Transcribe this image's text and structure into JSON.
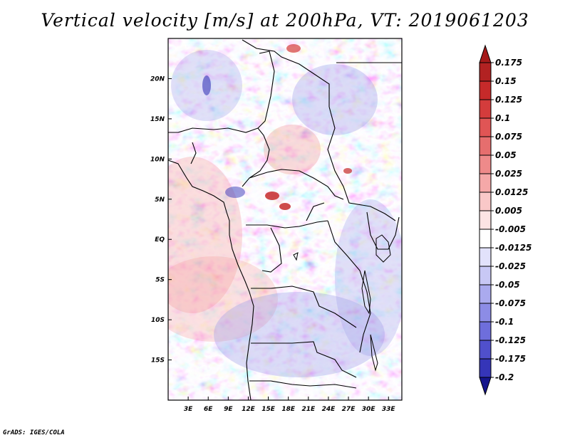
{
  "title": "Vertical velocity [m/s] at 200hPa, VT: 2019061203",
  "credit": "GrADS: IGES/COLA",
  "map": {
    "lon_range": [
      0,
      35
    ],
    "lat_range": [
      -20,
      25
    ],
    "lon_ticks": [
      {
        "value": 3,
        "label": "3E"
      },
      {
        "value": 6,
        "label": "6E"
      },
      {
        "value": 9,
        "label": "9E"
      },
      {
        "value": 12,
        "label": "12E"
      },
      {
        "value": 15,
        "label": "15E"
      },
      {
        "value": 18,
        "label": "18E"
      },
      {
        "value": 21,
        "label": "21E"
      },
      {
        "value": 24,
        "label": "24E"
      },
      {
        "value": 27,
        "label": "27E"
      },
      {
        "value": 30,
        "label": "30E"
      },
      {
        "value": 33,
        "label": "33E"
      }
    ],
    "lat_ticks": [
      {
        "value": 20,
        "label": "20N"
      },
      {
        "value": 15,
        "label": "15N"
      },
      {
        "value": 10,
        "label": "10N"
      },
      {
        "value": 5,
        "label": "5N"
      },
      {
        "value": 0,
        "label": "EQ"
      },
      {
        "value": -5,
        "label": "5S"
      },
      {
        "value": -10,
        "label": "10S"
      },
      {
        "value": -15,
        "label": "15S"
      }
    ]
  },
  "colorbar": {
    "levels": [
      {
        "label": "0.175",
        "color": "#b22222"
      },
      {
        "label": "0.15",
        "color": "#c62a2a"
      },
      {
        "label": "0.125",
        "color": "#d43c3c"
      },
      {
        "label": "0.1",
        "color": "#e05555"
      },
      {
        "label": "0.075",
        "color": "#e66e6e"
      },
      {
        "label": "0.05",
        "color": "#ee8a8a"
      },
      {
        "label": "0.025",
        "color": "#f5a8a8"
      },
      {
        "label": "0.0125",
        "color": "#f9c8c8"
      },
      {
        "label": "0.005",
        "color": "#fce4e4"
      },
      {
        "label": "-0.005",
        "color": "#ffffff"
      },
      {
        "label": "-0.0125",
        "color": "#e2e2fb"
      },
      {
        "label": "-0.025",
        "color": "#c8c8f5"
      },
      {
        "label": "-0.05",
        "color": "#aaaaee"
      },
      {
        "label": "-0.075",
        "color": "#8c8ce6"
      },
      {
        "label": "-0.1",
        "color": "#6e6edc"
      },
      {
        "label": "-0.125",
        "color": "#5050cc"
      },
      {
        "label": "-0.175",
        "color": "#3535b8"
      },
      {
        "label": "-0.2",
        "color": "#2020a0"
      }
    ],
    "top_color": "#a51a1a",
    "bottom_color": "#15158c"
  }
}
